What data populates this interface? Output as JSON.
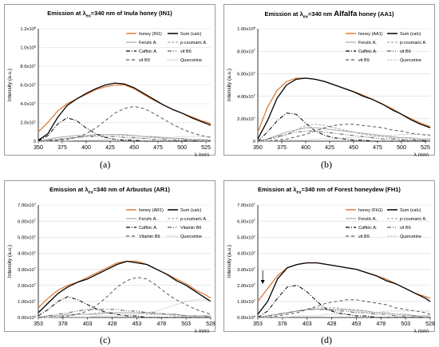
{
  "charts": [
    {
      "id": "a",
      "title_parts": [
        "Emission at λ",
        "ex",
        "=340 nm of Inula honey (IN1)"
      ],
      "caption": "(a)",
      "y_tick_labels": [
        "0",
        "2.0x10",
        "4.0x10",
        "6.0x10",
        "8.0x10",
        "1.0x10",
        "1.2x10"
      ],
      "y_tick_exps": [
        "",
        "7",
        "7",
        "7",
        "7",
        "8",
        "8"
      ],
      "legend": [
        [
          "honey (IN1)",
          "Sum (calc)"
        ],
        [
          "Ferulic A.",
          "p-coumaric A."
        ],
        [
          "Caffeic A.",
          "vit B6"
        ],
        [
          "vit B9",
          "Quercetine"
        ]
      ],
      "chart_data": {
        "type": "line",
        "title": "Emission at λex=340 nm of Inula honey (IN1)",
        "xlabel": "λ (nm)",
        "ylabel": "Intensity (a.u.)",
        "xlim": [
          350,
          530
        ],
        "ylim": [
          0,
          120000000
        ],
        "x_ticks": [
          350,
          375,
          400,
          425,
          450,
          475,
          500,
          525
        ],
        "x": [
          350,
          360,
          370,
          380,
          390,
          400,
          410,
          420,
          430,
          440,
          450,
          460,
          470,
          480,
          490,
          500,
          510,
          520,
          530
        ],
        "series": [
          {
            "name": "honey (IN1)",
            "values": [
              10,
              20,
              32,
              40,
              45,
              50,
              55,
              58,
              60,
              60,
              56,
              50,
              44,
              39,
              34,
              30,
              26,
              22,
              19
            ]
          },
          {
            "name": "Sum (calc)",
            "values": [
              1,
              8,
              25,
              38,
              45,
              51,
              56,
              60,
              62,
              61,
              57,
              51,
              45,
              39,
              34,
              30,
              25,
              21,
              17
            ]
          },
          {
            "name": "Ferulic A.",
            "values": [
              0,
              2,
              4,
              5,
              6,
              6,
              7,
              7,
              7,
              7,
              6,
              5,
              5,
              4,
              3,
              3,
              2,
              2,
              1
            ]
          },
          {
            "name": "p-coumaric A.",
            "values": [
              0,
              1,
              2,
              3,
              4,
              5,
              6,
              7,
              7,
              6,
              6,
              5,
              4,
              3,
              3,
              2,
              2,
              1,
              1
            ]
          },
          {
            "name": "Caffeic A.",
            "values": [
              0,
              6,
              18,
              25,
              22,
              14,
              8,
              4,
              2,
              1,
              1,
              0,
              0,
              0,
              0,
              0,
              0,
              0,
              0
            ]
          },
          {
            "name": "vit B6",
            "values": [
              0,
              1,
              2,
              3,
              4,
              5,
              5,
              5,
              5,
              4,
              4,
              3,
              2,
              2,
              1,
              1,
              1,
              0,
              0
            ]
          },
          {
            "name": "vit B9",
            "values": [
              0,
              0,
              1,
              2,
              4,
              8,
              14,
              22,
              30,
              35,
              37,
              35,
              30,
              24,
              18,
              13,
              9,
              6,
              4
            ]
          },
          {
            "name": "Quercetine",
            "values": [
              0,
              0,
              0,
              0,
              1,
              1,
              1,
              2,
              2,
              2,
              3,
              3,
              4,
              4,
              4,
              5,
              5,
              5,
              5
            ]
          }
        ]
      }
    },
    {
      "id": "b",
      "title_parts": [
        "Emission at λ",
        "ex",
        "=340 nm ",
        "Alfalfa",
        " honey (AA1)"
      ],
      "caption": "(b)",
      "y_tick_labels": [
        "0",
        "2.00x10",
        "4.00x10",
        "6.00x10",
        "8.00x10",
        "1.00x10"
      ],
      "y_tick_exps": [
        "",
        "7",
        "7",
        "7",
        "7",
        "8"
      ],
      "legend": [
        [
          "honey (AA1)",
          "Sum (calc)"
        ],
        [
          "Ferulic A.",
          "p-coumaric A."
        ],
        [
          "Caffeic A.",
          "vit B6"
        ],
        [
          "vit B9",
          "Quercetine"
        ]
      ],
      "chart_data": {
        "type": "line",
        "title": "Emission at λex=340 nm Alfalfa honey (AA1)",
        "xlabel": "λ (nm)",
        "ylabel": "Intensity (a.u.)",
        "xlim": [
          350,
          530
        ],
        "ylim": [
          0,
          100000000
        ],
        "x_ticks": [
          350,
          375,
          400,
          425,
          450,
          475,
          500,
          525
        ],
        "x": [
          350,
          360,
          370,
          380,
          390,
          400,
          410,
          420,
          430,
          440,
          450,
          460,
          470,
          480,
          490,
          500,
          510,
          520,
          530
        ],
        "series": [
          {
            "name": "honey (AA1)",
            "values": [
              8,
              30,
              45,
              53,
              56,
              56,
              55,
              53,
              50,
              47,
              44,
              41,
              37,
              33,
              29,
              24,
              20,
              16,
              13
            ]
          },
          {
            "name": "Sum (calc)",
            "values": [
              2,
              18,
              38,
              50,
              55,
              56,
              55,
              53,
              50,
              47,
              44,
              40,
              37,
              33,
              28,
              24,
              19,
              15,
              12
            ]
          },
          {
            "name": "Ferulic A.",
            "values": [
              0,
              2,
              5,
              8,
              10,
              12,
              12,
              11,
              10,
              9,
              8,
              7,
              6,
              5,
              4,
              3,
              3,
              2,
              2
            ]
          },
          {
            "name": "p-coumaric A.",
            "values": [
              0,
              1,
              3,
              6,
              10,
              14,
              15,
              14,
              12,
              10,
              8,
              6,
              5,
              4,
              3,
              2,
              2,
              1,
              1
            ]
          },
          {
            "name": "Caffeic A.",
            "values": [
              0,
              8,
              18,
              25,
              24,
              16,
              9,
              5,
              3,
              2,
              1,
              1,
              0,
              0,
              0,
              0,
              0,
              0,
              0
            ]
          },
          {
            "name": "vit B6",
            "values": [
              0,
              2,
              4,
              6,
              8,
              9,
              9,
              8,
              7,
              6,
              5,
              4,
              3,
              2,
              2,
              1,
              1,
              1,
              0
            ]
          },
          {
            "name": "vit B9",
            "values": [
              0,
              0,
              1,
              2,
              4,
              6,
              9,
              12,
              14,
              15,
              15,
              14,
              13,
              12,
              10,
              9,
              7,
              6,
              5
            ]
          },
          {
            "name": "Quercetine",
            "values": [
              0,
              0,
              0,
              1,
              1,
              1,
              2,
              2,
              2,
              3,
              3,
              4,
              4,
              5,
              5,
              6,
              6,
              6,
              6
            ]
          }
        ]
      }
    },
    {
      "id": "c",
      "title_parts": [
        "Emission at λ",
        "ex",
        "=340 nm of Arbustus (AR1)"
      ],
      "caption": "(c)",
      "y_tick_labels": [
        "0.00x10",
        "1.00x10",
        "2.00x10",
        "3.00x10",
        "4.00x10",
        "5.00x10",
        "6.00x10",
        "7.00x10"
      ],
      "y_tick_exps": [
        "0",
        "7",
        "7",
        "7",
        "7",
        "7",
        "7",
        "7"
      ],
      "legend": [
        [
          "honey (AR1)",
          "Sum (calc)"
        ],
        [
          "Ferulic A.",
          "p-coumaric A."
        ],
        [
          "Caffeic A.",
          "Vitamin B6"
        ],
        [
          "Vitamin B9",
          "Quercetine"
        ]
      ],
      "chart_data": {
        "type": "line",
        "title": "Emission at λex=340 nm of Arbustus (AR1)",
        "xlabel": "λ (nm)",
        "ylabel": "Intensity (a.u.)",
        "xlim": [
          353,
          528
        ],
        "ylim": [
          0,
          70000000
        ],
        "x_ticks": [
          353,
          378,
          403,
          428,
          453,
          478,
          503,
          528
        ],
        "x": [
          353,
          363,
          373,
          383,
          393,
          403,
          413,
          423,
          433,
          443,
          453,
          463,
          473,
          483,
          493,
          503,
          513,
          523,
          528
        ],
        "series": [
          {
            "name": "honey (AR1)",
            "values": [
              6,
              12,
              17,
              20,
              22,
              25,
              28,
              31,
              34,
              35,
              35,
              33,
              30,
              27,
              24,
              21,
              17,
              14,
              12
            ]
          },
          {
            "name": "Sum (calc)",
            "values": [
              3,
              9,
              15,
              19,
              22,
              24,
              27,
              30,
              33,
              35,
              34,
              33,
              30,
              27,
              23,
              20,
              16,
              12,
              10
            ]
          },
          {
            "name": "Ferulic A.",
            "values": [
              0,
              1,
              1,
              2,
              2,
              2,
              2,
              3,
              3,
              3,
              3,
              3,
              2,
              2,
              2,
              1,
              1,
              1,
              1
            ]
          },
          {
            "name": "p-coumaric A.",
            "values": [
              0,
              0,
              1,
              1,
              2,
              2,
              3,
              3,
              3,
              3,
              3,
              2,
              2,
              2,
              1,
              1,
              1,
              1,
              0
            ]
          },
          {
            "name": "Caffeic A.",
            "values": [
              1,
              5,
              10,
              13,
              11,
              8,
              5,
              3,
              2,
              1,
              1,
              0,
              0,
              0,
              0,
              0,
              0,
              0,
              0
            ]
          },
          {
            "name": "Vitamin B6",
            "values": [
              0,
              1,
              2,
              3,
              4,
              5,
              5,
              5,
              5,
              4,
              4,
              3,
              3,
              2,
              2,
              1,
              1,
              1,
              0
            ]
          },
          {
            "name": "Vitamin B9",
            "values": [
              0,
              0,
              0,
              1,
              2,
              4,
              8,
              13,
              19,
              23,
              25,
              24,
              20,
              15,
              11,
              8,
              5,
              3,
              2
            ]
          },
          {
            "name": "Quercetine",
            "values": [
              0,
              0,
              0,
              0,
              0,
              0,
              1,
              1,
              1,
              2,
              2,
              3,
              4,
              6,
              8,
              10,
              11,
              11,
              10
            ]
          }
        ]
      }
    },
    {
      "id": "d",
      "title_parts": [
        "Emission at λ",
        "ex",
        "=340 nm of Forest honeydew (FH1)"
      ],
      "caption": "(d)",
      "y_tick_labels": [
        "0.00x10",
        "1.00x10",
        "2.00x10",
        "3.00x10",
        "4.00x10",
        "5.00x10",
        "6.00x10",
        "7.00x10"
      ],
      "y_tick_exps": [
        "0",
        "7",
        "7",
        "7",
        "7",
        "7",
        "7",
        "7"
      ],
      "legend": [
        [
          "honey (FH1)",
          "Sum (calc)"
        ],
        [
          "Ferulic A.",
          "p-coumaric A."
        ],
        [
          "Caffeic A.",
          "vit B6"
        ],
        [
          "vit B9",
          "Quercetine"
        ]
      ],
      "chart_data": {
        "type": "line",
        "title": "Emission at λex=340 nm of Forest honeydew (FH1)",
        "xlabel": "λ (nm)",
        "ylabel": "Intensity (a.u.)",
        "xlim": [
          353,
          528
        ],
        "ylim": [
          0,
          70000000
        ],
        "x_ticks": [
          353,
          378,
          403,
          428,
          453,
          478,
          503,
          528
        ],
        "x": [
          353,
          363,
          373,
          383,
          393,
          403,
          413,
          423,
          433,
          443,
          453,
          463,
          473,
          483,
          493,
          503,
          513,
          523,
          528
        ],
        "series": [
          {
            "name": "honey (FH1)",
            "values": [
              10,
              18,
              26,
              31,
              33,
              34,
              34,
              33,
              32,
              31,
              30,
              28,
              26,
              24,
              21,
              18,
              15,
              13,
              12
            ]
          },
          {
            "name": "Sum (calc)",
            "values": [
              2,
              10,
              24,
              31,
              33,
              34,
              34,
              33,
              32,
              31,
              30,
              28,
              26,
              23,
              21,
              18,
              15,
              12,
              10
            ]
          },
          {
            "name": "Ferulic A.",
            "values": [
              0,
              1,
              2,
              3,
              4,
              5,
              5,
              5,
              5,
              5,
              4,
              4,
              3,
              3,
              2,
              2,
              1,
              1,
              1
            ]
          },
          {
            "name": "p-coumaric A.",
            "values": [
              0,
              1,
              2,
              3,
              4,
              5,
              6,
              6,
              6,
              5,
              5,
              4,
              3,
              3,
              2,
              2,
              1,
              1,
              1
            ]
          },
          {
            "name": "Caffeic A.",
            "values": [
              0,
              4,
              12,
              19,
              20,
              16,
              10,
              5,
              3,
              2,
              1,
              1,
              0,
              0,
              0,
              0,
              0,
              0,
              0
            ]
          },
          {
            "name": "vit B6",
            "values": [
              0,
              1,
              2,
              3,
              4,
              5,
              5,
              5,
              4,
              4,
              3,
              3,
              2,
              2,
              1,
              1,
              1,
              0,
              0
            ]
          },
          {
            "name": "vit B9",
            "values": [
              0,
              0,
              1,
              2,
              3,
              5,
              7,
              9,
              10,
              11,
              11,
              10,
              9,
              8,
              6,
              5,
              4,
              3,
              2
            ]
          },
          {
            "name": "Quercetine",
            "values": [
              0,
              0,
              0,
              0,
              1,
              1,
              1,
              2,
              2,
              2,
              3,
              3,
              3,
              4,
              4,
              4,
              4,
              4,
              4
            ]
          }
        ]
      }
    }
  ],
  "styles": {
    "honey_color": "#e07b39",
    "sum_color": "#000000",
    "component_color": "#595959",
    "light_color": "#a6a6a6",
    "axis_color": "#000000"
  }
}
